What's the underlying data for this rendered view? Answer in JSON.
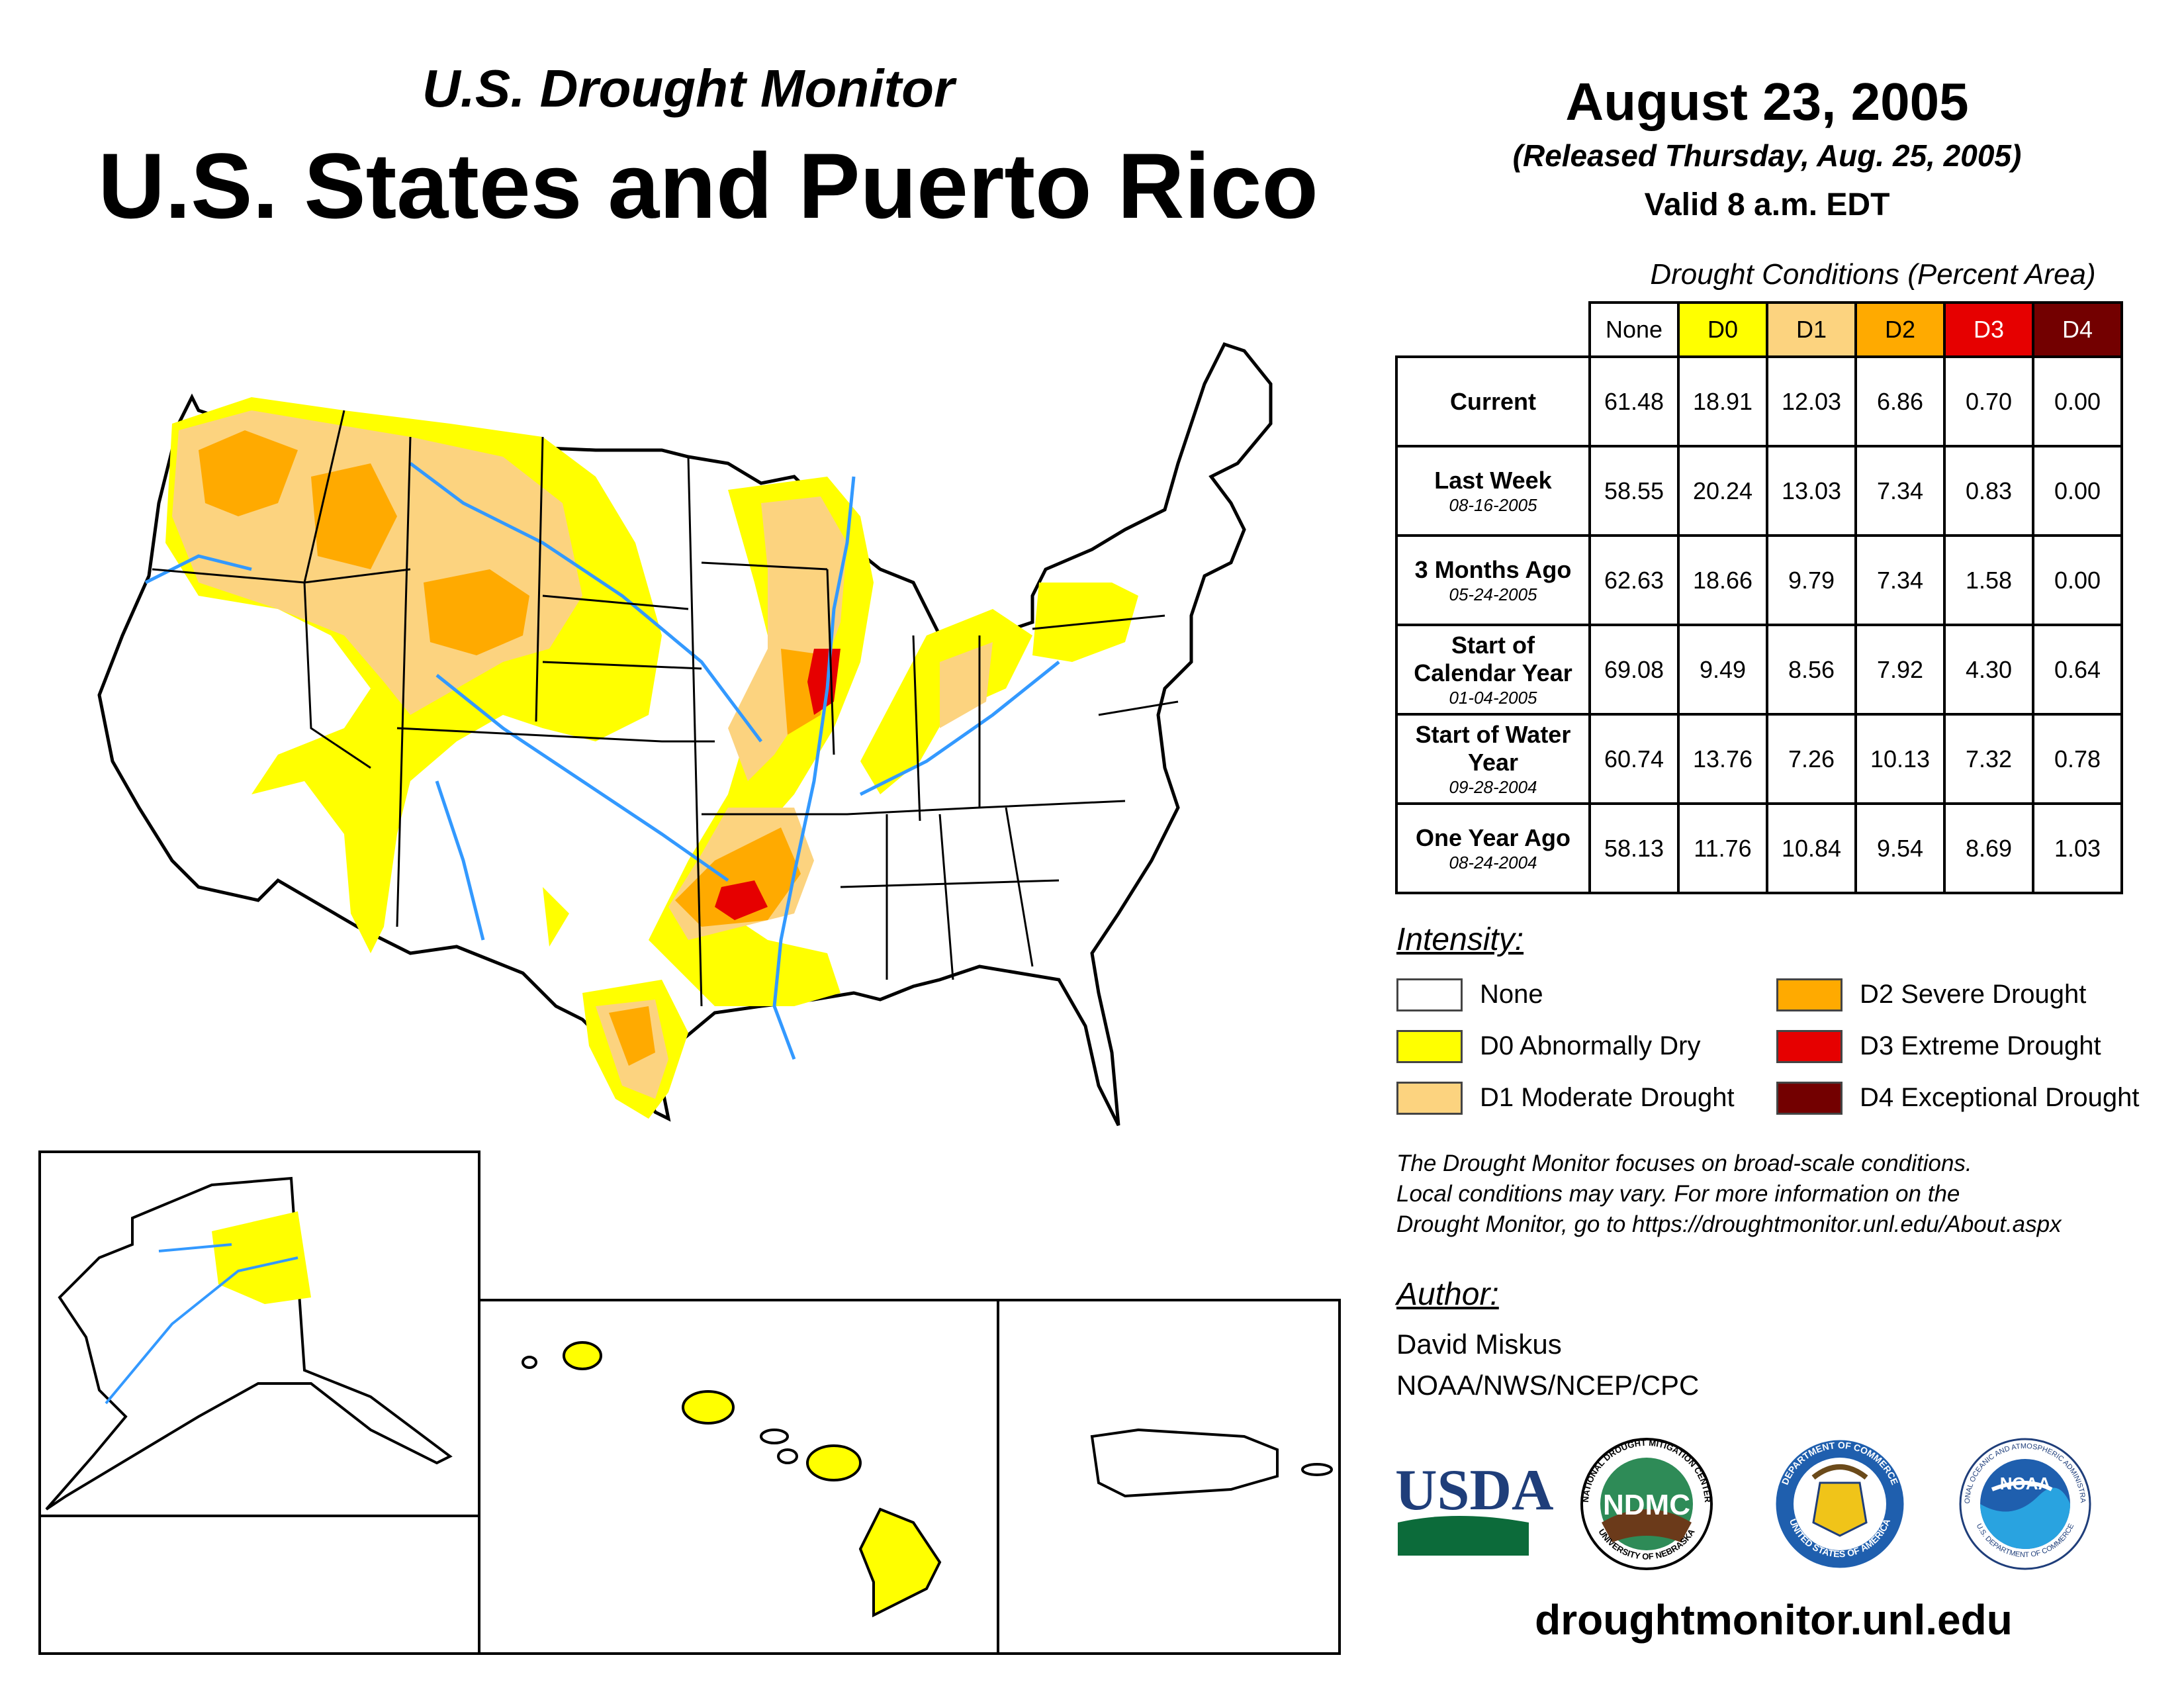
{
  "header": {
    "subtitle": "U.S. Drought Monitor",
    "title": "U.S. States and Puerto Rico",
    "date": "August 23, 2005",
    "released": "(Released Thursday, Aug. 25, 2005)",
    "valid": "Valid 8 a.m. EDT"
  },
  "table": {
    "caption": "Drought Conditions (Percent Area)",
    "columns": [
      "None",
      "D0",
      "D1",
      "D2",
      "D3",
      "D4"
    ],
    "column_colors": [
      "#ffffff",
      "#ffff00",
      "#fcd37f",
      "#ffaa00",
      "#e60000",
      "#730000"
    ],
    "rows": [
      {
        "label": "Current",
        "date": "",
        "values": [
          "61.48",
          "18.91",
          "12.03",
          "6.86",
          "0.70",
          "0.00"
        ]
      },
      {
        "label": "Last Week",
        "date": "08-16-2005",
        "values": [
          "58.55",
          "20.24",
          "13.03",
          "7.34",
          "0.83",
          "0.00"
        ]
      },
      {
        "label": "3 Months Ago",
        "date": "05-24-2005",
        "values": [
          "62.63",
          "18.66",
          "9.79",
          "7.34",
          "1.58",
          "0.00"
        ]
      },
      {
        "label": "Start of Calendar Year",
        "date": "01-04-2005",
        "values": [
          "69.08",
          "9.49",
          "8.56",
          "7.92",
          "4.30",
          "0.64"
        ]
      },
      {
        "label": "Start of Water Year",
        "date": "09-28-2004",
        "values": [
          "60.74",
          "13.76",
          "7.26",
          "10.13",
          "7.32",
          "0.78"
        ]
      },
      {
        "label": "One Year Ago",
        "date": "08-24-2004",
        "values": [
          "58.13",
          "11.76",
          "10.84",
          "9.54",
          "8.69",
          "1.03"
        ]
      }
    ]
  },
  "legend": {
    "title": "Intensity:",
    "items": [
      {
        "label": "None",
        "color": "#ffffff"
      },
      {
        "label": "D0 Abnormally Dry",
        "color": "#ffff00"
      },
      {
        "label": "D1 Moderate Drought",
        "color": "#fcd37f"
      },
      {
        "label": "D2 Severe Drought",
        "color": "#ffaa00"
      },
      {
        "label": "D3 Extreme Drought",
        "color": "#e60000"
      },
      {
        "label": "D4 Exceptional Drought",
        "color": "#730000"
      }
    ]
  },
  "note": {
    "line1": "The Drought Monitor focuses on broad-scale conditions.",
    "line2": "Local conditions may vary. For more information on the",
    "line3": "Drought Monitor, go to https://droughtmonitor.unl.edu/About.aspx"
  },
  "author": {
    "title": "Author:",
    "name": "David Miskus",
    "org": "NOAA/NWS/NCEP/CPC"
  },
  "logos": {
    "usda": "USDA",
    "ndmc": "NDMC",
    "ndmc_ring_top": "NATIONAL DROUGHT MITIGATION CENTER",
    "ndmc_ring_bottom": "UNIVERSITY OF NEBRASKA",
    "doc_ring_top": "DEPARTMENT OF COMMERCE",
    "doc_ring_bottom": "UNITED STATES OF AMERICA",
    "noaa": "NOAA",
    "noaa_ring_top": "NATIONAL OCEANIC AND ATMOSPHERIC ADMINISTRATION",
    "noaa_ring_bottom": "U.S. DEPARTMENT OF COMMERCE"
  },
  "url": "droughtmonitor.unl.edu"
}
